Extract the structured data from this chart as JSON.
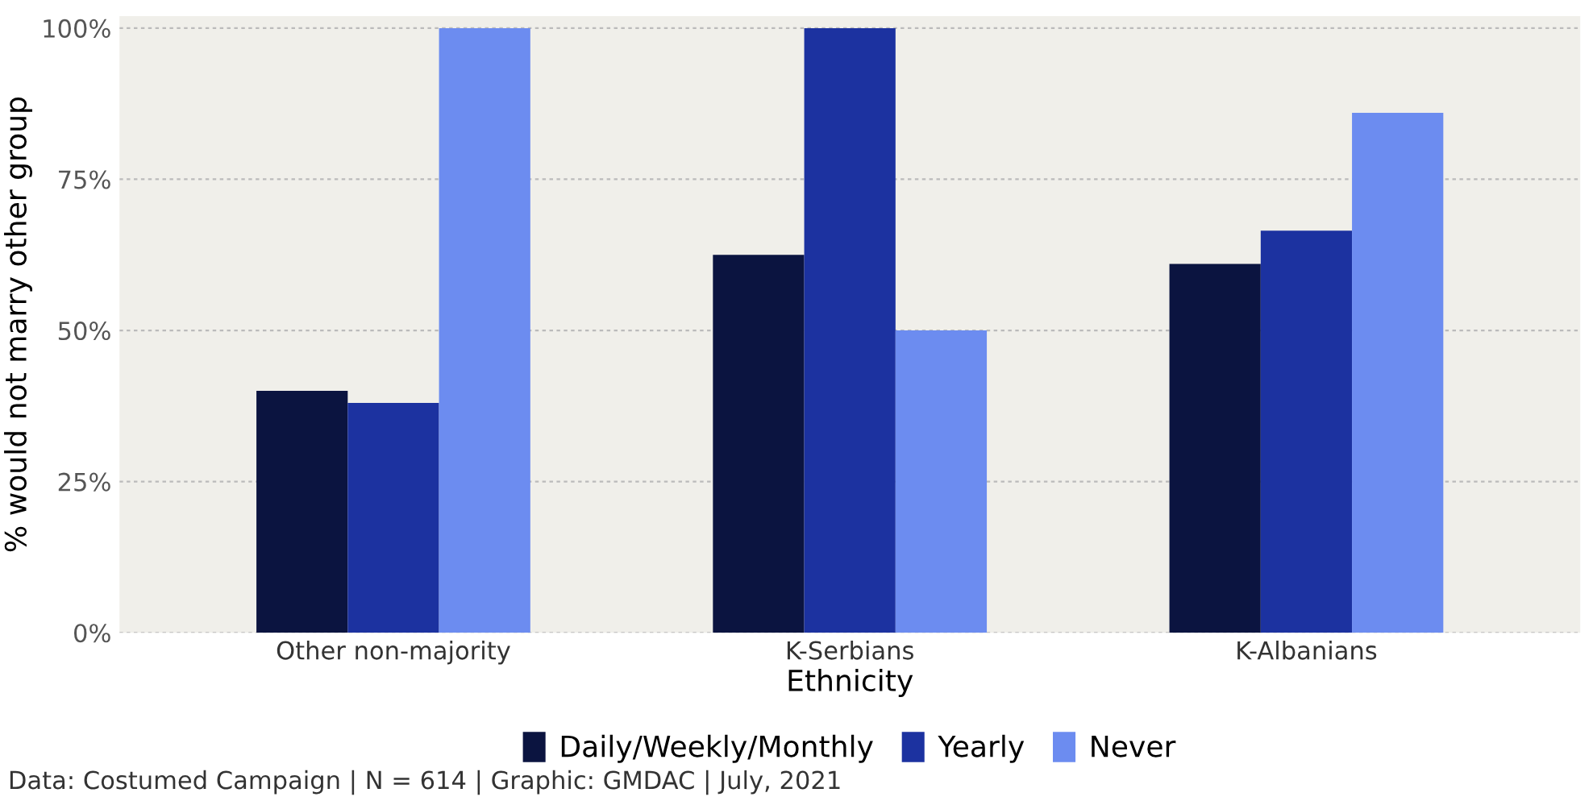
{
  "chart_data": {
    "type": "bar",
    "xlabel": "Ethnicity",
    "ylabel": "% would not marry other group",
    "categories": [
      "Other non-majority",
      "K-Serbians",
      "K-Albanians"
    ],
    "series": [
      {
        "name": "Daily/Weekly/Monthly",
        "color": "#0b1440",
        "values": [
          40,
          62.5,
          61
        ]
      },
      {
        "name": "Yearly",
        "color": "#1c32a0",
        "values": [
          38,
          100,
          66.5
        ]
      },
      {
        "name": "Never",
        "color": "#6c8cf0",
        "values": [
          100,
          50,
          86
        ]
      }
    ],
    "ylim": [
      0,
      102
    ],
    "yticks": [
      {
        "value": 0,
        "label": "0%"
      },
      {
        "value": 25,
        "label": "25%"
      },
      {
        "value": 50,
        "label": "50%"
      },
      {
        "value": 75,
        "label": "75%"
      },
      {
        "value": 100,
        "label": "100%"
      }
    ],
    "grid": "y",
    "legend": "bottom",
    "annotations": [
      "Data: Costumed Campaign | N = 614 | Graphic: GMDAC | July, 2021"
    ]
  }
}
